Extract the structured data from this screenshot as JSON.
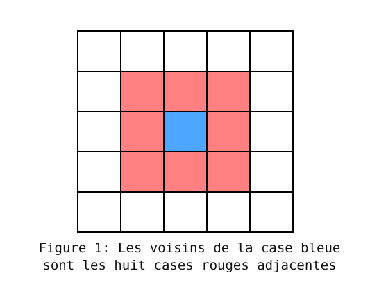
{
  "figure": {
    "caption_lines": [
      "Figure 1: Les voisins de la case bleue",
      "sont les huit cases rouges adjacentes"
    ]
  },
  "grid": {
    "rows": 5,
    "cols": 5,
    "cells": [
      [
        "empty",
        "empty",
        "empty",
        "empty",
        "empty"
      ],
      [
        "empty",
        "neighbor",
        "neighbor",
        "neighbor",
        "empty"
      ],
      [
        "empty",
        "neighbor",
        "center",
        "neighbor",
        "empty"
      ],
      [
        "empty",
        "neighbor",
        "neighbor",
        "neighbor",
        "empty"
      ],
      [
        "empty",
        "empty",
        "empty",
        "empty",
        "empty"
      ]
    ]
  },
  "colors": {
    "empty": "#ffffff",
    "neighbor": "#ff8080",
    "center": "#4da6ff",
    "line": "#000000"
  }
}
